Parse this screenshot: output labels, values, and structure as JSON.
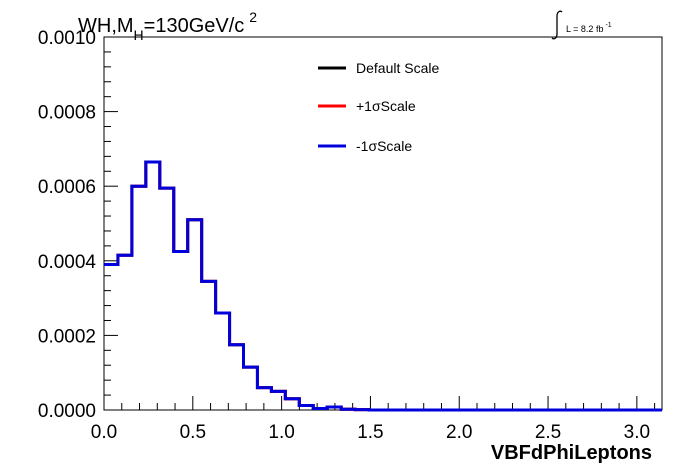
{
  "chart_data": {
    "type": "line",
    "title": "WH,M",
    "title_sub": "H",
    "title_rest": "=130GeV/c",
    "title_sup": "2",
    "lumi_label": "L = 8.2 fb",
    "lumi_sup": "-1",
    "xlabel": "VBFdPhiLeptons",
    "ylabel": "",
    "xlim": [
      0,
      3.14159
    ],
    "ylim": [
      0,
      0.001
    ],
    "x_ticks": [
      0.0,
      0.5,
      1.0,
      1.5,
      2.0,
      2.5,
      3.0
    ],
    "x_tick_labels": [
      "0.0",
      "0.5",
      "1.0",
      "1.5",
      "2.0",
      "2.5",
      "3.0"
    ],
    "y_ticks": [
      0.0,
      0.0002,
      0.0004,
      0.0006,
      0.0008,
      0.001
    ],
    "y_tick_labels": [
      "0.0000",
      "0.0002",
      "0.0004",
      "0.0006",
      "0.0008",
      "0.0010"
    ],
    "grid": false,
    "legend_position": "top-right",
    "bin_edges": [
      0.0,
      0.0785,
      0.1571,
      0.2356,
      0.3142,
      0.3927,
      0.4712,
      0.5498,
      0.6283,
      0.7069,
      0.7854,
      0.8639,
      0.9425,
      1.021,
      1.0996,
      1.1781,
      1.2566,
      1.3352,
      1.4137,
      1.4923,
      1.5708,
      1.6493,
      1.7279,
      1.8064,
      1.885,
      1.9635,
      2.042,
      2.1206,
      2.1991,
      2.2777,
      2.3562,
      2.4347,
      2.5133,
      2.5918,
      2.6704,
      2.7489,
      2.8274,
      2.906,
      2.9845,
      3.0631,
      3.1416
    ],
    "series": [
      {
        "name": "Default Scale",
        "color": "#000000",
        "values": [
          0.00039,
          0.000415,
          0.0006,
          0.000665,
          0.000595,
          0.000425,
          0.00051,
          0.000345,
          0.00026,
          0.000175,
          0.000115,
          6e-05,
          5e-05,
          3e-05,
          1.2e-05,
          4e-06,
          8e-06,
          2e-06,
          1e-06,
          0,
          0,
          0,
          0,
          0,
          0,
          0,
          0,
          0,
          0,
          0,
          0,
          0,
          0,
          0,
          0,
          0,
          0,
          0,
          0,
          0
        ]
      },
      {
        "name": "+1σScale",
        "color": "#ff0000",
        "values": [
          0.00039,
          0.000415,
          0.0006,
          0.000665,
          0.000595,
          0.000425,
          0.00051,
          0.000345,
          0.00026,
          0.000175,
          0.000115,
          6e-05,
          5e-05,
          3e-05,
          1.2e-05,
          4e-06,
          8e-06,
          2e-06,
          1e-06,
          0,
          0,
          0,
          0,
          0,
          0,
          0,
          0,
          0,
          0,
          0,
          0,
          0,
          0,
          0,
          0,
          0,
          0,
          0,
          0,
          0
        ]
      },
      {
        "name": "-1σScale",
        "color": "#0000dd",
        "values": [
          0.00039,
          0.000415,
          0.0006,
          0.000665,
          0.000595,
          0.000425,
          0.00051,
          0.000345,
          0.00026,
          0.000175,
          0.000115,
          6e-05,
          5e-05,
          3e-05,
          1.2e-05,
          4e-06,
          8e-06,
          2e-06,
          1e-06,
          0,
          0,
          0,
          0,
          0,
          0,
          0,
          0,
          0,
          0,
          0,
          0,
          0,
          0,
          0,
          0,
          0,
          0,
          0,
          0,
          0
        ]
      }
    ]
  }
}
